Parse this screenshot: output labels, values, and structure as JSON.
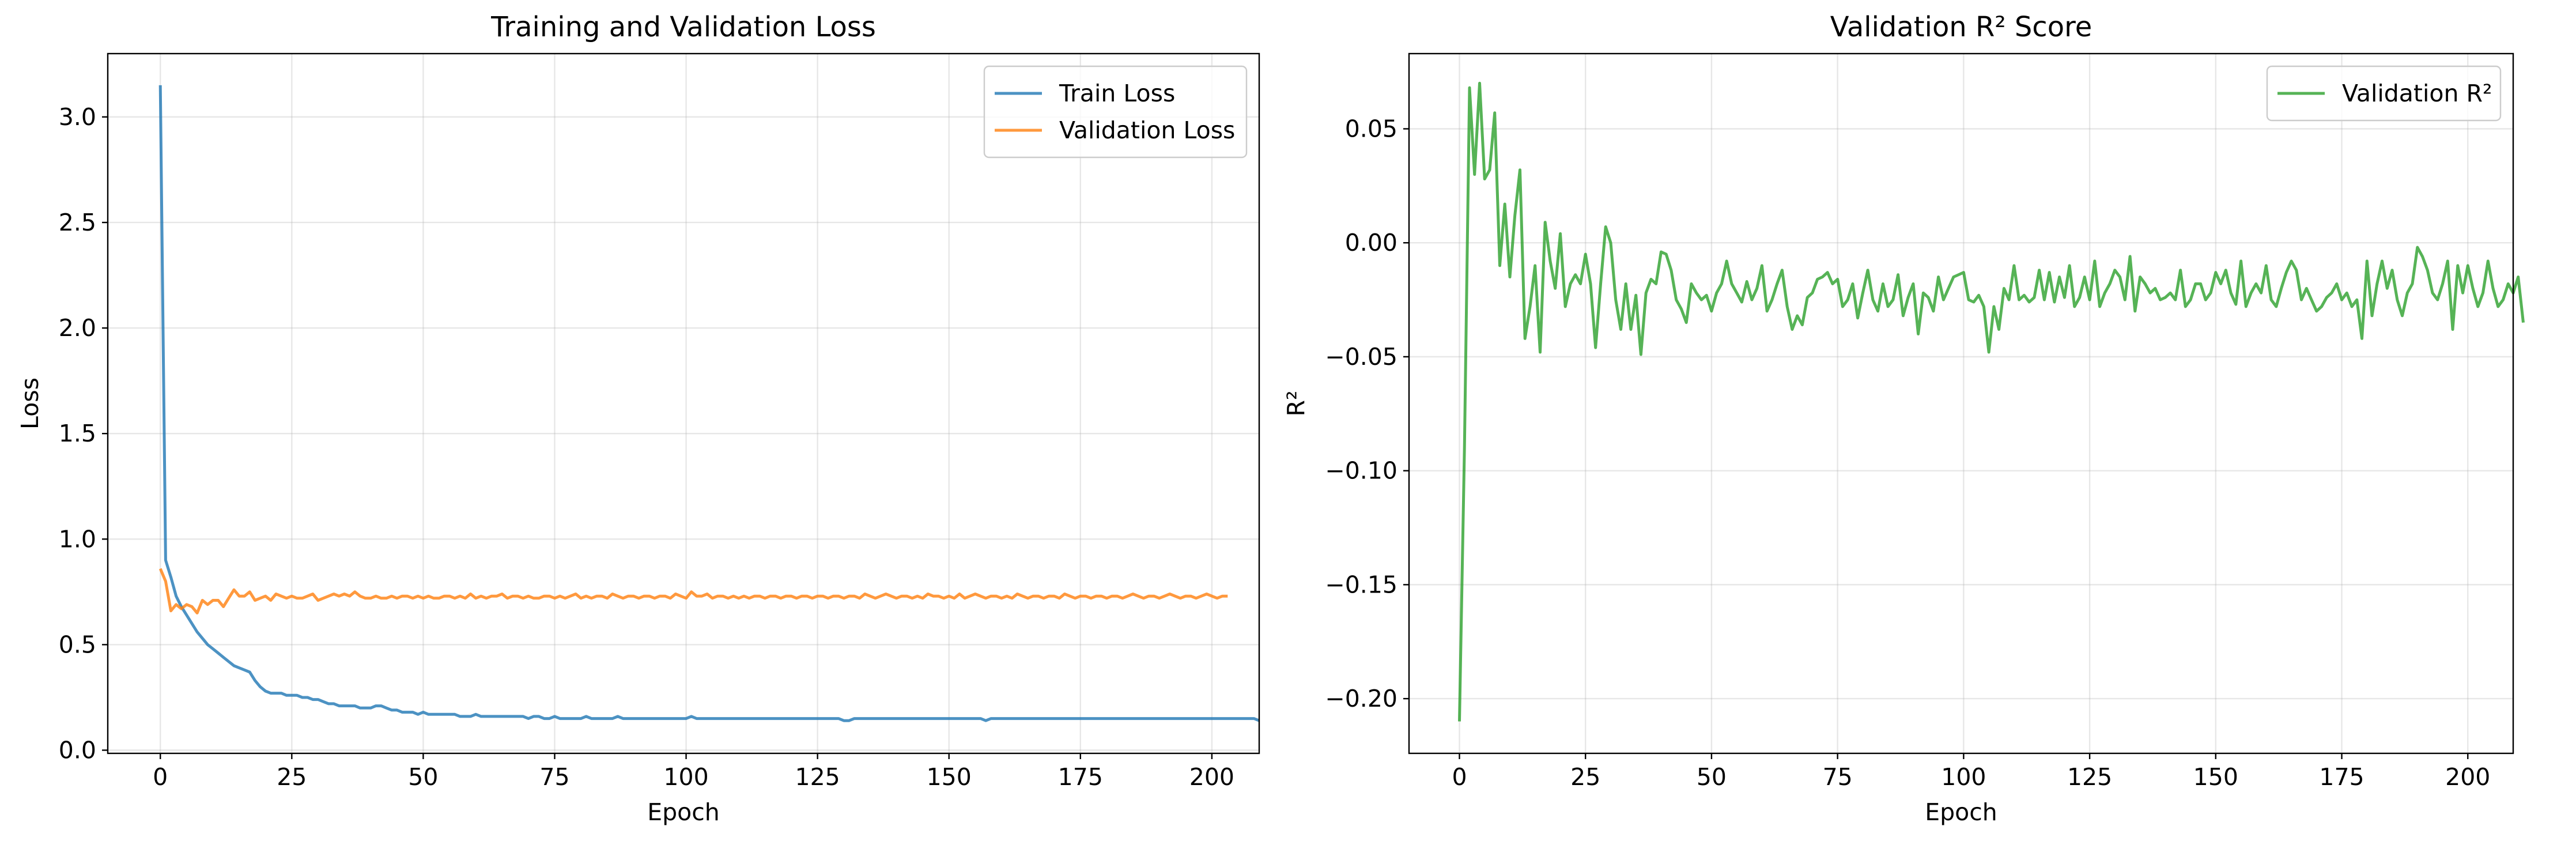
{
  "chart_data": [
    {
      "type": "line",
      "title": "Training and Validation Loss",
      "xlabel": "Epoch",
      "ylabel": "Loss",
      "xlim": [
        -10,
        209
      ],
      "ylim": [
        -0.015,
        3.3
      ],
      "xticks": [
        0,
        25,
        50,
        75,
        100,
        125,
        150,
        175,
        200
      ],
      "yticks": [
        0.0,
        0.5,
        1.0,
        1.5,
        2.0,
        2.5,
        3.0
      ],
      "ytick_labels": [
        "0.0",
        "0.5",
        "1.0",
        "1.5",
        "2.0",
        "2.5",
        "3.0"
      ],
      "grid": true,
      "legend": "top-right",
      "series": [
        {
          "name": "Train Loss",
          "color": "#1f77b4",
          "values": [
            3.15,
            0.9,
            0.82,
            0.73,
            0.68,
            0.64,
            0.6,
            0.56,
            0.53,
            0.5,
            0.48,
            0.46,
            0.44,
            0.42,
            0.4,
            0.39,
            0.38,
            0.37,
            0.33,
            0.3,
            0.28,
            0.27,
            0.27,
            0.27,
            0.26,
            0.26,
            0.26,
            0.25,
            0.25,
            0.24,
            0.24,
            0.23,
            0.22,
            0.22,
            0.21,
            0.21,
            0.21,
            0.21,
            0.2,
            0.2,
            0.2,
            0.21,
            0.21,
            0.2,
            0.19,
            0.19,
            0.18,
            0.18,
            0.18,
            0.17,
            0.18,
            0.17,
            0.17,
            0.17,
            0.17,
            0.17,
            0.17,
            0.16,
            0.16,
            0.16,
            0.17,
            0.16,
            0.16,
            0.16,
            0.16,
            0.16,
            0.16,
            0.16,
            0.16,
            0.16,
            0.15,
            0.16,
            0.16,
            0.15,
            0.15,
            0.16,
            0.15,
            0.15,
            0.15,
            0.15,
            0.15,
            0.16,
            0.15,
            0.15,
            0.15,
            0.15,
            0.15,
            0.16,
            0.15,
            0.15,
            0.15,
            0.15,
            0.15,
            0.15,
            0.15,
            0.15,
            0.15,
            0.15,
            0.15,
            0.15,
            0.15,
            0.16,
            0.15,
            0.15,
            0.15,
            0.15,
            0.15,
            0.15,
            0.15,
            0.15,
            0.15,
            0.15,
            0.15,
            0.15,
            0.15,
            0.15,
            0.15,
            0.15,
            0.15,
            0.15,
            0.15,
            0.15,
            0.15,
            0.15,
            0.15,
            0.15,
            0.15,
            0.15,
            0.15,
            0.15,
            0.14,
            0.14,
            0.15,
            0.15,
            0.15,
            0.15,
            0.15,
            0.15,
            0.15,
            0.15,
            0.15,
            0.15,
            0.15,
            0.15,
            0.15,
            0.15,
            0.15,
            0.15,
            0.15,
            0.15,
            0.15,
            0.15,
            0.15,
            0.15,
            0.15,
            0.15,
            0.15,
            0.14,
            0.15,
            0.15,
            0.15,
            0.15,
            0.15,
            0.15,
            0.15,
            0.15,
            0.15,
            0.15,
            0.15,
            0.15,
            0.15,
            0.15,
            0.15,
            0.15,
            0.15,
            0.15,
            0.15,
            0.15,
            0.15,
            0.15,
            0.15,
            0.15,
            0.15,
            0.15,
            0.15,
            0.15,
            0.15,
            0.15,
            0.15,
            0.15,
            0.15,
            0.15,
            0.15,
            0.15,
            0.15,
            0.15,
            0.15,
            0.15,
            0.15,
            0.15,
            0.15,
            0.15,
            0.15,
            0.15,
            0.15,
            0.15,
            0.15,
            0.15,
            0.15,
            0.14
          ]
        },
        {
          "name": "Validation Loss",
          "color": "#ff7f0e",
          "values": [
            0.86,
            0.8,
            0.66,
            0.69,
            0.67,
            0.69,
            0.68,
            0.65,
            0.71,
            0.69,
            0.71,
            0.71,
            0.68,
            0.72,
            0.76,
            0.73,
            0.73,
            0.75,
            0.71,
            0.72,
            0.73,
            0.71,
            0.74,
            0.73,
            0.72,
            0.73,
            0.72,
            0.72,
            0.73,
            0.74,
            0.71,
            0.72,
            0.73,
            0.74,
            0.73,
            0.74,
            0.73,
            0.75,
            0.73,
            0.72,
            0.72,
            0.73,
            0.72,
            0.72,
            0.73,
            0.72,
            0.73,
            0.73,
            0.72,
            0.73,
            0.72,
            0.73,
            0.72,
            0.72,
            0.73,
            0.73,
            0.72,
            0.73,
            0.72,
            0.74,
            0.72,
            0.73,
            0.72,
            0.73,
            0.73,
            0.74,
            0.72,
            0.73,
            0.73,
            0.72,
            0.73,
            0.72,
            0.72,
            0.73,
            0.73,
            0.72,
            0.73,
            0.72,
            0.73,
            0.74,
            0.72,
            0.73,
            0.72,
            0.73,
            0.73,
            0.72,
            0.74,
            0.73,
            0.72,
            0.73,
            0.73,
            0.72,
            0.73,
            0.73,
            0.72,
            0.73,
            0.73,
            0.72,
            0.74,
            0.73,
            0.72,
            0.75,
            0.73,
            0.73,
            0.74,
            0.72,
            0.73,
            0.73,
            0.72,
            0.73,
            0.72,
            0.73,
            0.72,
            0.73,
            0.73,
            0.72,
            0.73,
            0.73,
            0.72,
            0.73,
            0.73,
            0.72,
            0.73,
            0.73,
            0.72,
            0.73,
            0.73,
            0.72,
            0.73,
            0.73,
            0.72,
            0.73,
            0.73,
            0.72,
            0.74,
            0.73,
            0.72,
            0.73,
            0.74,
            0.73,
            0.72,
            0.73,
            0.73,
            0.72,
            0.73,
            0.72,
            0.74,
            0.73,
            0.73,
            0.72,
            0.73,
            0.72,
            0.74,
            0.72,
            0.73,
            0.74,
            0.73,
            0.72,
            0.73,
            0.73,
            0.72,
            0.73,
            0.72,
            0.74,
            0.73,
            0.72,
            0.73,
            0.73,
            0.72,
            0.73,
            0.73,
            0.72,
            0.74,
            0.73,
            0.72,
            0.73,
            0.73,
            0.72,
            0.73,
            0.73,
            0.72,
            0.73,
            0.73,
            0.72,
            0.73,
            0.74,
            0.73,
            0.72,
            0.73,
            0.73,
            0.72,
            0.73,
            0.74,
            0.73,
            0.72,
            0.73,
            0.73,
            0.72,
            0.73,
            0.74,
            0.73,
            0.72,
            0.73,
            0.73
          ]
        }
      ]
    },
    {
      "type": "line",
      "title": "Validation R² Score",
      "xlabel": "Epoch",
      "ylabel": "R²",
      "xlim": [
        -10,
        209
      ],
      "ylim": [
        -0.224,
        0.083
      ],
      "xticks": [
        0,
        25,
        50,
        75,
        100,
        125,
        150,
        175,
        200
      ],
      "yticks": [
        -0.2,
        -0.15,
        -0.1,
        -0.05,
        0.0,
        0.05
      ],
      "ytick_labels": [
        "−0.20",
        "−0.15",
        "−0.10",
        "−0.05",
        "0.00",
        "0.05"
      ],
      "grid": true,
      "legend": "top-right",
      "series": [
        {
          "name": "Validation R²",
          "color": "#2ca02c",
          "values": [
            -0.21,
            -0.09,
            0.068,
            0.03,
            0.07,
            0.028,
            0.032,
            0.057,
            -0.01,
            0.017,
            -0.015,
            0.012,
            0.032,
            -0.042,
            -0.028,
            -0.01,
            -0.048,
            0.009,
            -0.008,
            -0.02,
            0.004,
            -0.028,
            -0.018,
            -0.014,
            -0.018,
            -0.005,
            -0.018,
            -0.046,
            -0.018,
            0.007,
            0.0,
            -0.025,
            -0.038,
            -0.018,
            -0.038,
            -0.023,
            -0.049,
            -0.022,
            -0.016,
            -0.018,
            -0.004,
            -0.005,
            -0.012,
            -0.025,
            -0.029,
            -0.035,
            -0.018,
            -0.022,
            -0.025,
            -0.023,
            -0.03,
            -0.022,
            -0.018,
            -0.008,
            -0.018,
            -0.022,
            -0.026,
            -0.017,
            -0.025,
            -0.02,
            -0.01,
            -0.03,
            -0.025,
            -0.018,
            -0.012,
            -0.028,
            -0.038,
            -0.032,
            -0.036,
            -0.024,
            -0.022,
            -0.016,
            -0.015,
            -0.013,
            -0.018,
            -0.016,
            -0.028,
            -0.025,
            -0.018,
            -0.033,
            -0.022,
            -0.012,
            -0.025,
            -0.03,
            -0.018,
            -0.028,
            -0.025,
            -0.014,
            -0.032,
            -0.024,
            -0.018,
            -0.04,
            -0.022,
            -0.024,
            -0.03,
            -0.015,
            -0.025,
            -0.02,
            -0.015,
            -0.014,
            -0.013,
            -0.025,
            -0.026,
            -0.023,
            -0.028,
            -0.048,
            -0.028,
            -0.038,
            -0.02,
            -0.025,
            -0.01,
            -0.025,
            -0.023,
            -0.026,
            -0.024,
            -0.012,
            -0.025,
            -0.013,
            -0.026,
            -0.015,
            -0.024,
            -0.01,
            -0.028,
            -0.024,
            -0.015,
            -0.025,
            -0.008,
            -0.028,
            -0.022,
            -0.018,
            -0.012,
            -0.015,
            -0.025,
            -0.006,
            -0.03,
            -0.015,
            -0.018,
            -0.022,
            -0.02,
            -0.025,
            -0.024,
            -0.022,
            -0.025,
            -0.012,
            -0.028,
            -0.025,
            -0.018,
            -0.018,
            -0.025,
            -0.022,
            -0.013,
            -0.018,
            -0.012,
            -0.022,
            -0.027,
            -0.008,
            -0.028,
            -0.022,
            -0.018,
            -0.022,
            -0.01,
            -0.025,
            -0.028,
            -0.02,
            -0.013,
            -0.008,
            -0.012,
            -0.025,
            -0.02,
            -0.025,
            -0.03,
            -0.028,
            -0.024,
            -0.022,
            -0.018,
            -0.025,
            -0.022,
            -0.028,
            -0.025,
            -0.042,
            -0.008,
            -0.032,
            -0.018,
            -0.008,
            -0.02,
            -0.012,
            -0.025,
            -0.032,
            -0.022,
            -0.018,
            -0.002,
            -0.006,
            -0.012,
            -0.022,
            -0.025,
            -0.018,
            -0.008,
            -0.038,
            -0.01,
            -0.022,
            -0.01,
            -0.02,
            -0.028,
            -0.022,
            -0.008,
            -0.02,
            -0.028,
            -0.025,
            -0.018,
            -0.022,
            -0.015,
            -0.035
          ]
        }
      ]
    }
  ]
}
